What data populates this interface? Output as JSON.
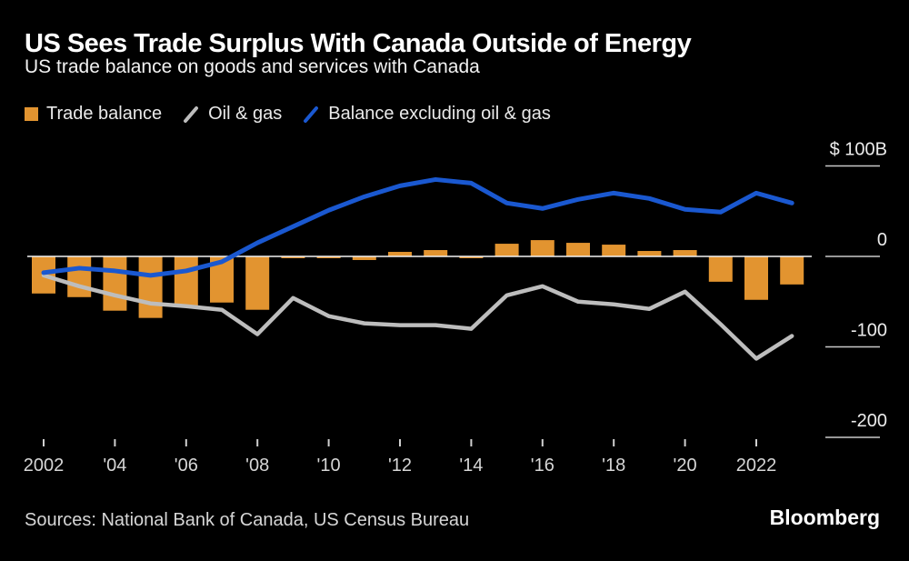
{
  "header": {
    "title": "US Sees Trade Surplus With Canada Outside of Energy",
    "subtitle": "US trade balance on goods and services with Canada"
  },
  "legend": {
    "position": "top",
    "items": [
      {
        "label": "Trade balance",
        "marker": "square",
        "color": "#e29430"
      },
      {
        "label": "Oil & gas",
        "marker": "slash",
        "color": "#bdbdbd"
      },
      {
        "label": "Balance excluding oil & gas",
        "marker": "slash",
        "color": "#1a58d0"
      }
    ]
  },
  "chart_data": {
    "type": "bar",
    "note": "combination chart: one bar series plus two line series, values in billions of US dollars",
    "x": [
      2002,
      2003,
      2004,
      2005,
      2006,
      2007,
      2008,
      2009,
      2010,
      2011,
      2012,
      2013,
      2014,
      2015,
      2016,
      2017,
      2018,
      2019,
      2020,
      2021,
      2022,
      2023
    ],
    "series": [
      {
        "name": "Trade balance",
        "type": "bar",
        "color": "#e29430",
        "values": [
          -41,
          -45,
          -60,
          -68,
          -56,
          -51,
          -59,
          -2,
          -2,
          -4,
          5,
          7,
          -2,
          14,
          18,
          15,
          13,
          6,
          7,
          -28,
          -48,
          -31
        ]
      },
      {
        "name": "Oil & gas",
        "type": "line",
        "color": "#bdbdbd",
        "values": [
          -21,
          -33,
          -43,
          -52,
          -55,
          -59,
          -86,
          -46,
          -66,
          -74,
          -76,
          -76,
          -80,
          -43,
          -33,
          -50,
          -53,
          -58,
          -39,
          -75,
          -113,
          -88
        ]
      },
      {
        "name": "Balance excluding oil & gas",
        "type": "line",
        "color": "#1a58d0",
        "values": [
          -18,
          -13,
          -16,
          -21,
          -16,
          -6,
          15,
          33,
          51,
          66,
          78,
          85,
          81,
          59,
          53,
          63,
          70,
          64,
          52,
          49,
          70,
          59
        ]
      }
    ],
    "title": "US Sees Trade Surplus With Canada Outside of Energy",
    "xlabel": "",
    "ylabel": "$B",
    "ylim": [
      -225,
      115
    ],
    "grid": "zero-line-only",
    "legend_position": "top",
    "y_ticks": [
      {
        "label": "$ 100B",
        "value": 100
      },
      {
        "label": "0",
        "value": 0
      },
      {
        "label": "-100",
        "value": -100
      },
      {
        "label": "-200",
        "value": -200
      }
    ],
    "x_ticks": [
      {
        "label": "2002",
        "year": 2002
      },
      {
        "label": "'04",
        "year": 2004
      },
      {
        "label": "'06",
        "year": 2006
      },
      {
        "label": "'08",
        "year": 2008
      },
      {
        "label": "'10",
        "year": 2010
      },
      {
        "label": "'12",
        "year": 2012
      },
      {
        "label": "'14",
        "year": 2014
      },
      {
        "label": "'16",
        "year": 2016
      },
      {
        "label": "'18",
        "year": 2018
      },
      {
        "label": "'20",
        "year": 2020
      },
      {
        "label": "2022",
        "year": 2022
      }
    ]
  },
  "footer": {
    "sources": "Sources: National Bank of Canada, US Census Bureau",
    "brand": "Bloomberg"
  }
}
